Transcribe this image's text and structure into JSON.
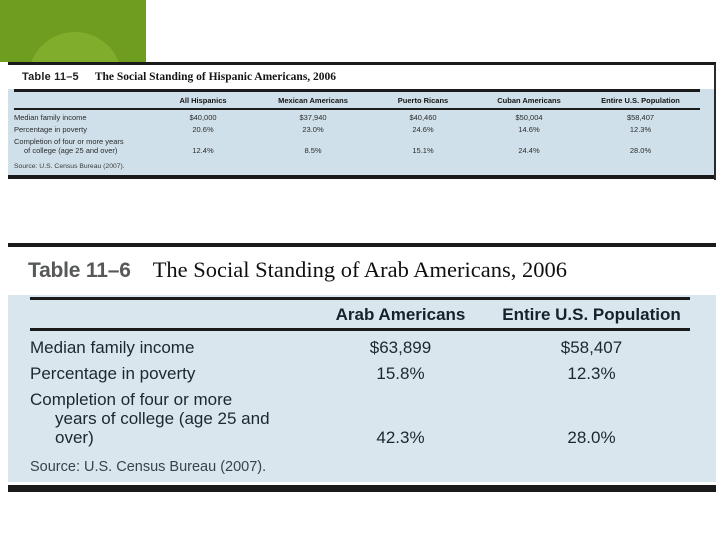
{
  "decoration": {
    "rect_color": "#6f9d20",
    "circle_color": "#80ae2c"
  },
  "colors": {
    "rule": "#1a1a1a",
    "panel_top": "#cfe0ea",
    "panel_bottom": "#d9e6ee",
    "table_label_gray": "#57585a"
  },
  "table_11_5": {
    "label": "Table 11–5",
    "title": "The Social Standing of Hispanic Americans, 2006",
    "columns": [
      "All Hispanics",
      "Mexican Americans",
      "Puerto Ricans",
      "Cuban Americans",
      "Entire U.S. Population"
    ],
    "rows": [
      {
        "label": "Median family income",
        "values": [
          "$40,000",
          "$37,940",
          "$40,460",
          "$50,004",
          "$58,407"
        ]
      },
      {
        "label": "Percentage in poverty",
        "values": [
          "20.6%",
          "23.0%",
          "24.6%",
          "14.6%",
          "12.3%"
        ]
      },
      {
        "label": "Completion of four or more years",
        "label2": "of college (age 25 and over)",
        "values": [
          "12.4%",
          "8.5%",
          "15.1%",
          "24.4%",
          "28.0%"
        ]
      }
    ],
    "source": "Source: U.S. Census Bureau (2007)."
  },
  "table_11_6": {
    "label": "Table 11–6",
    "title": "The Social Standing of Arab Americans, 2006",
    "columns": [
      "Arab Americans",
      "Entire U.S. Population"
    ],
    "rows": [
      {
        "label": "Median family income",
        "values": [
          "$63,899",
          "$58,407"
        ]
      },
      {
        "label": "Percentage in poverty",
        "values": [
          "15.8%",
          "12.3%"
        ]
      },
      {
        "label": "Completion of four or more",
        "label2": "years of college (age 25 and over)",
        "values": [
          "42.3%",
          "28.0%"
        ]
      }
    ],
    "source": "Source: U.S. Census Bureau (2007)."
  }
}
